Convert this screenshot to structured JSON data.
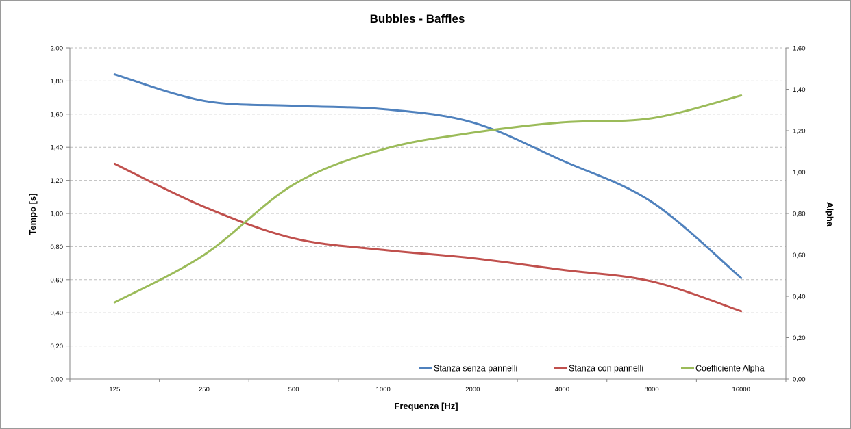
{
  "chart_data": {
    "type": "line",
    "title": "Bubbles - Baffles",
    "xlabel": "Frequenza [Hz]",
    "ylabel": "Tempo [s]",
    "y2label": "Alpha",
    "categories": [
      "125",
      "250",
      "500",
      "1000",
      "2000",
      "4000",
      "8000",
      "16000"
    ],
    "ylim": [
      0,
      2
    ],
    "y2lim": [
      0,
      1.6
    ],
    "yticks": [
      "0,00",
      "0,20",
      "0,40",
      "0,60",
      "0,80",
      "1,00",
      "1,20",
      "1,40",
      "1,60",
      "1,80",
      "2,00"
    ],
    "y2ticks": [
      "0,00",
      "0,20",
      "0,40",
      "0,60",
      "0,80",
      "1,00",
      "1,20",
      "1,40",
      "1,60"
    ],
    "grid": true,
    "legend_position": "bottom-right",
    "series": [
      {
        "name": "Stanza senza pannelli",
        "axis": "left",
        "color": "#4f81bd",
        "values": [
          1.84,
          1.68,
          1.65,
          1.63,
          1.55,
          1.32,
          1.07,
          0.61
        ]
      },
      {
        "name": "Stanza con pannelli",
        "axis": "left",
        "color": "#c0504d",
        "values": [
          1.3,
          1.04,
          0.85,
          0.78,
          0.73,
          0.66,
          0.59,
          0.41
        ]
      },
      {
        "name": "Coefficiente Alpha",
        "axis": "right",
        "color": "#9bbb59",
        "values": [
          0.37,
          0.6,
          0.94,
          1.11,
          1.19,
          1.24,
          1.26,
          1.37
        ]
      }
    ]
  }
}
